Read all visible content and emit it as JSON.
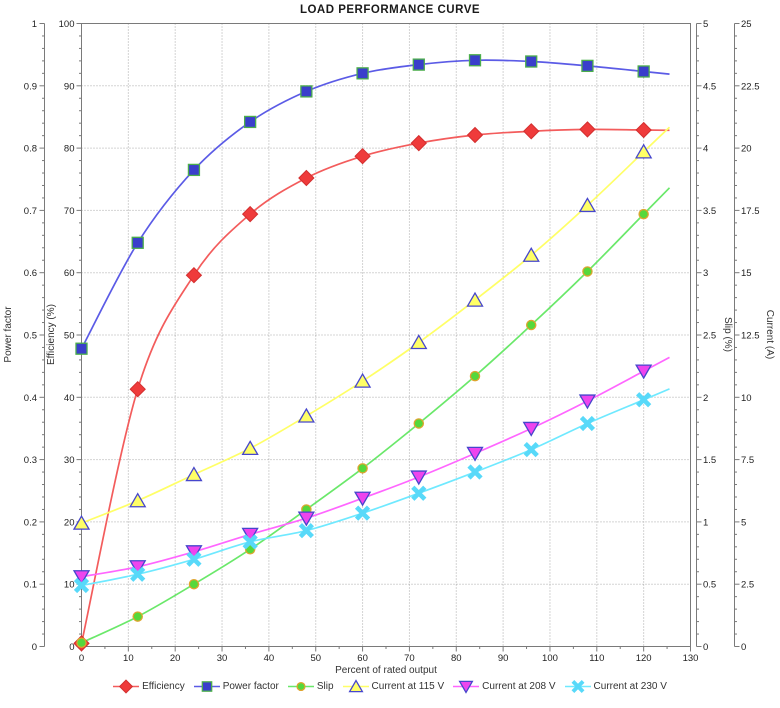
{
  "title": "LOAD PERFORMANCE CURVE",
  "chart_data": {
    "type": "line",
    "title": "LOAD PERFORMANCE CURVE",
    "xlabel": "Percent of rated output",
    "grid": true,
    "legend_position": "bottom",
    "x": [
      0,
      12,
      24,
      36,
      48,
      60,
      72,
      84,
      96,
      108,
      120
    ],
    "axes": {
      "x": {
        "label": "Percent of rated output",
        "min": 0,
        "max": 130,
        "ticks": [
          0,
          10,
          20,
          30,
          40,
          50,
          60,
          70,
          80,
          90,
          100,
          110,
          120,
          130
        ],
        "minor_per_major": 2
      },
      "power_factor": {
        "label": "Power factor",
        "min": 0,
        "max": 1,
        "ticks": [
          0,
          0.1,
          0.2,
          0.3,
          0.4,
          0.5,
          0.6,
          0.7,
          0.8,
          0.9,
          1
        ],
        "minor_per_major": 5
      },
      "efficiency": {
        "label": "Efficiency (%)",
        "min": 0,
        "max": 100,
        "ticks": [
          0,
          10,
          20,
          30,
          40,
          50,
          60,
          70,
          80,
          90,
          100
        ],
        "minor_per_major": 5
      },
      "slip": {
        "label": "Slip (%)",
        "min": 0,
        "max": 5,
        "ticks": [
          0,
          0.5,
          1,
          1.5,
          2,
          2.5,
          3,
          3.5,
          4,
          4.5,
          5
        ],
        "minor_per_major": 5
      },
      "current": {
        "label": "Current (A)",
        "min": 0,
        "max": 25,
        "ticks": [
          0,
          2.5,
          5,
          7.5,
          10,
          12.5,
          15,
          17.5,
          20,
          22.5,
          25
        ],
        "minor_per_major": 5
      }
    },
    "series": [
      {
        "name": "Efficiency",
        "axis": "efficiency",
        "marker": "diamond",
        "line_color": "#f35c5c",
        "marker_fill": "#ef3b3b",
        "marker_stroke": "#d32f2f",
        "values": [
          0.5,
          41.3,
          59.6,
          69.4,
          75.2,
          78.7,
          80.8,
          82.1,
          82.7,
          83.0,
          82.9
        ]
      },
      {
        "name": "Power factor",
        "axis": "power_factor",
        "marker": "square",
        "line_color": "#5b5be6",
        "marker_fill": "#3a3ecb",
        "marker_stroke": "#4cae4c",
        "values": [
          0.478,
          0.648,
          0.765,
          0.842,
          0.891,
          0.92,
          0.934,
          0.941,
          0.939,
          0.932,
          0.923
        ]
      },
      {
        "name": "Slip",
        "axis": "slip",
        "marker": "circle",
        "line_color": "#6ae86a",
        "marker_fill": "#55d83b",
        "marker_stroke": "#dfa42e",
        "values": [
          0.03,
          0.24,
          0.5,
          0.78,
          1.1,
          1.43,
          1.79,
          2.17,
          2.58,
          3.01,
          3.47
        ]
      },
      {
        "name": "Current at 115 V",
        "axis": "current",
        "marker": "triangle-up",
        "line_color": "#ffff66",
        "marker_fill": "#ffff66",
        "marker_stroke": "#4646cc",
        "values": [
          4.95,
          5.85,
          6.9,
          7.95,
          9.25,
          10.65,
          12.2,
          13.9,
          15.7,
          17.7,
          19.85
        ]
      },
      {
        "name": "Current at 208 V",
        "axis": "current",
        "marker": "triangle-down",
        "line_color": "#ff66ff",
        "marker_fill": "#ee44ee",
        "marker_stroke": "#4646cc",
        "values": [
          2.8,
          3.2,
          3.8,
          4.5,
          5.15,
          5.95,
          6.8,
          7.75,
          8.75,
          9.85,
          11.05
        ]
      },
      {
        "name": "Current at 230 V",
        "axis": "current",
        "marker": "x",
        "line_color": "#6fe9ff",
        "marker_fill": "#58d9f9",
        "marker_stroke": "none",
        "values": [
          2.45,
          2.9,
          3.5,
          4.2,
          4.65,
          5.35,
          6.15,
          7.0,
          7.9,
          8.95,
          9.9
        ]
      }
    ],
    "style": {
      "grid_color": "#a9a9a9",
      "axis_color": "#7a7a7a",
      "tick_label_color": "#222222",
      "axis_title_color": "#333333",
      "title_color": "#1a1a1a",
      "plot_background": "#ffffff"
    }
  }
}
